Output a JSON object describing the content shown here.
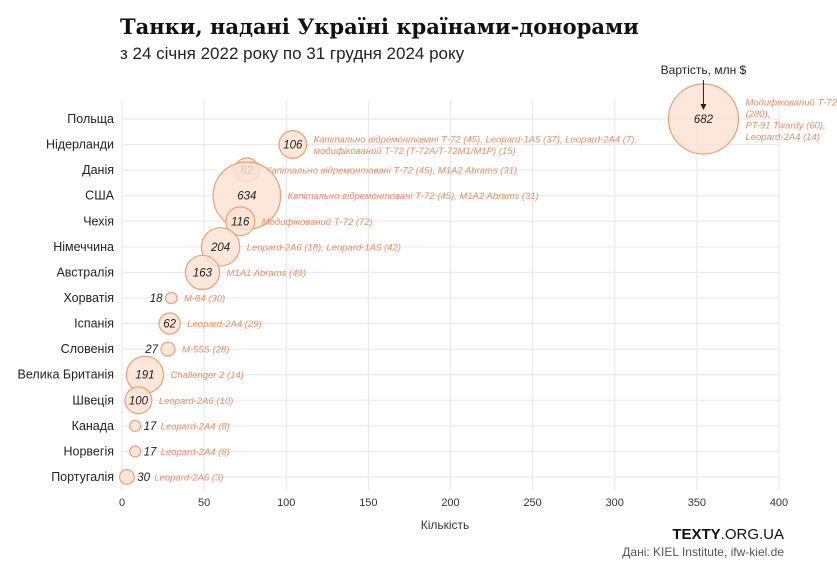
{
  "chart_data": {
    "type": "scatter",
    "title": "Танки, надані Україні країнами-донорами",
    "subtitle": "з 24 січня 2022 року по 31 грудня 2024 року",
    "xlabel": "Кількість",
    "ylabel": "",
    "size_label": "Вартість, млн $",
    "xlim": [
      0,
      400
    ],
    "xticks": [
      0,
      50,
      100,
      150,
      200,
      250,
      300,
      350,
      400
    ],
    "grid": true,
    "rows": [
      {
        "country": "Польща",
        "count": 354,
        "value": 682,
        "label": [
          "Модифікований Т-72",
          "(280),",
          "PT-91 Twardy (60),",
          "Leopard-2A4 (14)"
        ]
      },
      {
        "country": "Нідерланди",
        "count": 104,
        "value": 106,
        "label": [
          "Капітально відремонтовані Т-72 (45), Leopard-1A5 (37), Leopard-2A4 (7),",
          "модифікований Т-72 (Т-72А/Т-72М1/М1Р) (15)"
        ]
      },
      {
        "country": "Данія",
        "count": 76,
        "value": 82,
        "label": [
          "Капітально відремонтовані Т-72 (45), M1A2 Abrams (31)"
        ]
      },
      {
        "country": "США",
        "count": 76,
        "value": 634,
        "label": [
          "Капітально відремонтовані Т-72 (45), M1A2 Abrams (31)"
        ]
      },
      {
        "country": "Чехія",
        "count": 72,
        "value": 116,
        "label": [
          "Модифікований Т-72 (72)"
        ]
      },
      {
        "country": "Німеччина",
        "count": 60,
        "value": 204,
        "label": [
          "Leopard-2A6 (18), Leopard-1A5 (42)"
        ]
      },
      {
        "country": "Австралія",
        "count": 49,
        "value": 163,
        "label": [
          "M1A1 Abrams (49)"
        ]
      },
      {
        "country": "Хорватія",
        "count": 30,
        "value": 18,
        "label": [
          "M-84 (30)"
        ]
      },
      {
        "country": "Іспанія",
        "count": 29,
        "value": 62,
        "label": [
          "Leopard-2A4 (29)"
        ]
      },
      {
        "country": "Словенія",
        "count": 28,
        "value": 27,
        "label": [
          "M-55S (28)"
        ]
      },
      {
        "country": "Велика Британія",
        "count": 14,
        "value": 191,
        "label": [
          "Challenger 2 (14)"
        ]
      },
      {
        "country": "Швеція",
        "count": 10,
        "value": 100,
        "label": [
          "Leopard-2A6 (10)"
        ]
      },
      {
        "country": "Канада",
        "count": 8,
        "value": 17,
        "label": [
          "Leopard-2A4 (8)"
        ]
      },
      {
        "country": "Норвегія",
        "count": 8,
        "value": 17,
        "label": [
          "Leopard-2A4 (8)"
        ]
      },
      {
        "country": "Португалія",
        "count": 3,
        "value": 30,
        "label": [
          "Leopard-2A6 (3)"
        ]
      }
    ]
  },
  "footer": {
    "brand_bold": "TEXTY",
    "brand_rest": ".ORG.UA",
    "source": "Дані: KIEL Institute, ifw-kiel.de"
  },
  "colors": {
    "bubble_fill": "#fbe3d3",
    "bubble_stroke": "#ef9f76",
    "label": "#ec8e67"
  }
}
